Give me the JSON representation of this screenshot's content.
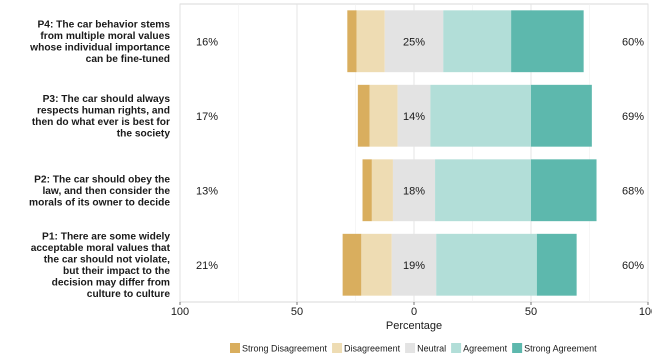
{
  "chart_data": {
    "type": "bar",
    "orientation": "horizontal",
    "stacked": "diverging",
    "xlabel": "Percentage",
    "xlim": [
      -100,
      100
    ],
    "xticks": [
      -100,
      -50,
      0,
      50,
      100
    ],
    "xtick_labels": [
      "100",
      "50",
      "0",
      "50",
      "100"
    ],
    "grid": true,
    "legend_position": "bottom",
    "legend": [
      "Strong Disagreement",
      "Disagreement",
      "Neutral",
      "Agreement",
      "Strong Agreement"
    ],
    "colors": {
      "Strong Disagreement": "#d9ae5e",
      "Disagreement": "#eedcb3",
      "Neutral": "#e3e3e3",
      "Agreement": "#b2ded8",
      "Strong Agreement": "#5db8ad"
    },
    "categories": [
      {
        "label": [
          "P4: The car behavior stems",
          "from multiple moral values",
          "whose individual importance",
          "can be fine-tuned"
        ],
        "values": {
          "Strong Disagreement": 4,
          "Disagreement": 12,
          "Neutral": 25,
          "Agreement": 29,
          "Strong Agreement": 31
        },
        "left_pct": "16%",
        "neutral_pct": "25%",
        "right_pct": "60%"
      },
      {
        "label": [
          "P3: The car should always",
          "respects human rights, and",
          "then do what ever is best for",
          "the society"
        ],
        "values": {
          "Strong Disagreement": 5,
          "Disagreement": 12,
          "Neutral": 14,
          "Agreement": 43,
          "Strong Agreement": 26
        },
        "left_pct": "17%",
        "neutral_pct": "14%",
        "right_pct": "69%"
      },
      {
        "label": [
          "P2: The car should obey the",
          "law, and then consider the",
          "morals of its owner to decide"
        ],
        "values": {
          "Strong Disagreement": 4,
          "Disagreement": 9,
          "Neutral": 18,
          "Agreement": 41,
          "Strong Agreement": 28
        },
        "left_pct": "13%",
        "neutral_pct": "18%",
        "right_pct": "68%"
      },
      {
        "label": [
          "P1: There are some widely",
          "acceptable moral values that",
          "the car should not violate,",
          "but their impact to the",
          "decision may differ from",
          "culture to culture"
        ],
        "values": {
          "Strong Disagreement": 8,
          "Disagreement": 13,
          "Neutral": 19,
          "Agreement": 43,
          "Strong Agreement": 17
        },
        "left_pct": "21%",
        "neutral_pct": "19%",
        "right_pct": "60%"
      }
    ]
  }
}
